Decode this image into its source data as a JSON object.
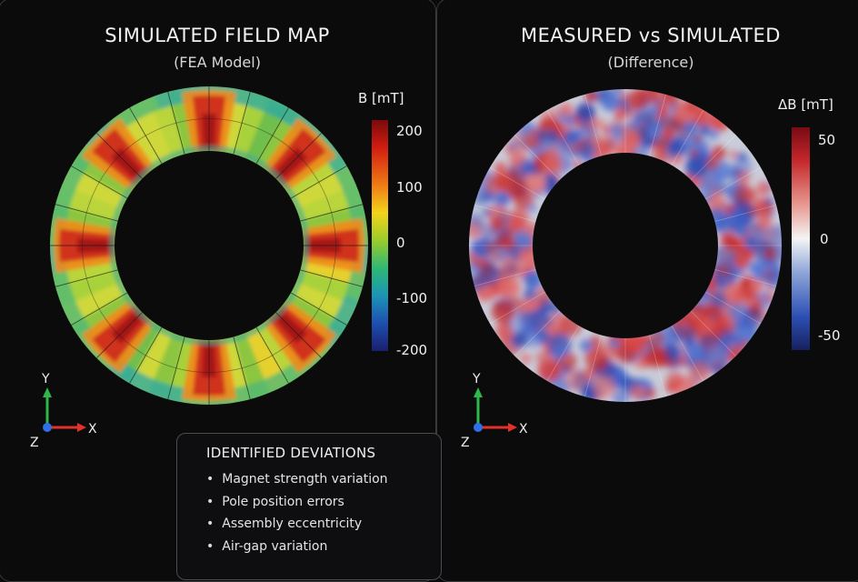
{
  "left_panel": {
    "title": "SIMULATED FIELD MAP",
    "subtitle": "(FEA Model)",
    "colorbar": {
      "title": "B [mT]",
      "ticks": [
        "200",
        "100",
        "0",
        "-100",
        "-200"
      ],
      "scale": "jet"
    },
    "axes": {
      "y": "Y",
      "x": "X",
      "z": "Z"
    }
  },
  "right_panel": {
    "title": "MEASURED vs SIMULATED",
    "subtitle": "(Difference)",
    "colorbar": {
      "title": "ΔB [mT]",
      "ticks": [
        "50",
        "0",
        "-50"
      ],
      "scale": "diverging-red-white-blue"
    },
    "axes": {
      "y": "Y",
      "x": "X",
      "z": "Z"
    }
  },
  "deviations": {
    "title": "IDENTIFIED DEVIATIONS",
    "items": [
      "Magnet strength variation",
      "Pole position errors",
      "Assembly eccentricity",
      "Air-gap variation"
    ]
  },
  "colors": {
    "background": "#0a0a0b",
    "panel_border": "#3a3a3e",
    "axis_x": "#e0312a",
    "axis_y": "#2fb84a",
    "axis_z": "#2f6fe8"
  }
}
